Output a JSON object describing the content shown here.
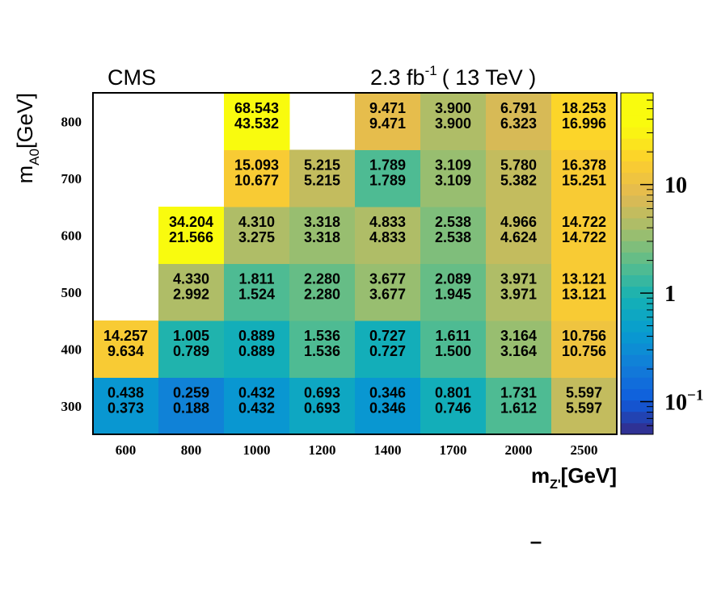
{
  "chart_data": {
    "type": "heatmap",
    "title": "",
    "experiment_label": "CMS",
    "lumi_label": "2.3 fb",
    "lumi_sup": "-1",
    "energy_label": "( 13 TeV )",
    "xlabel": "m",
    "xlabel_sub": "Z'",
    "xlabel_unit": "[GeV]",
    "ylabel": "m",
    "ylabel_sub": "A0",
    "ylabel_unit": "[GeV]",
    "x_categories": [
      "600",
      "800",
      "1000",
      "1200",
      "1400",
      "1700",
      "2000",
      "2500"
    ],
    "y_categories": [
      "300",
      "400",
      "500",
      "600",
      "700",
      "800"
    ],
    "z_scale": "log",
    "z_range": [
      0.05,
      70
    ],
    "colorbar_ticks": [
      {
        "value": 10,
        "base": "10",
        "exp": ""
      },
      {
        "value": 1,
        "base": "1",
        "exp": ""
      },
      {
        "value": 0.1,
        "base": "10",
        "exp": "−1"
      }
    ],
    "stray_mark": "–",
    "cells": [
      {
        "x": "600",
        "y": "300",
        "top": "0.438",
        "bottom": "0.373"
      },
      {
        "x": "800",
        "y": "300",
        "top": "0.259",
        "bottom": "0.188"
      },
      {
        "x": "1000",
        "y": "300",
        "top": "0.432",
        "bottom": "0.432"
      },
      {
        "x": "1200",
        "y": "300",
        "top": "0.693",
        "bottom": "0.693"
      },
      {
        "x": "1400",
        "y": "300",
        "top": "0.346",
        "bottom": "0.346"
      },
      {
        "x": "1700",
        "y": "300",
        "top": "0.801",
        "bottom": "0.746"
      },
      {
        "x": "2000",
        "y": "300",
        "top": "1.731",
        "bottom": "1.612"
      },
      {
        "x": "2500",
        "y": "300",
        "top": "5.597",
        "bottom": "5.597"
      },
      {
        "x": "600",
        "y": "400",
        "top": "14.257",
        "bottom": "9.634"
      },
      {
        "x": "800",
        "y": "400",
        "top": "1.005",
        "bottom": "0.789"
      },
      {
        "x": "1000",
        "y": "400",
        "top": "0.889",
        "bottom": "0.889"
      },
      {
        "x": "1200",
        "y": "400",
        "top": "1.536",
        "bottom": "1.536"
      },
      {
        "x": "1400",
        "y": "400",
        "top": "0.727",
        "bottom": "0.727"
      },
      {
        "x": "1700",
        "y": "400",
        "top": "1.611",
        "bottom": "1.500"
      },
      {
        "x": "2000",
        "y": "400",
        "top": "3.164",
        "bottom": "3.164"
      },
      {
        "x": "2500",
        "y": "400",
        "top": "10.756",
        "bottom": "10.756"
      },
      {
        "x": "800",
        "y": "500",
        "top": "4.330",
        "bottom": "2.992"
      },
      {
        "x": "1000",
        "y": "500",
        "top": "1.811",
        "bottom": "1.524"
      },
      {
        "x": "1200",
        "y": "500",
        "top": "2.280",
        "bottom": "2.280"
      },
      {
        "x": "1400",
        "y": "500",
        "top": "3.677",
        "bottom": "3.677"
      },
      {
        "x": "1700",
        "y": "500",
        "top": "2.089",
        "bottom": "1.945"
      },
      {
        "x": "2000",
        "y": "500",
        "top": "3.971",
        "bottom": "3.971"
      },
      {
        "x": "2500",
        "y": "500",
        "top": "13.121",
        "bottom": "13.121"
      },
      {
        "x": "800",
        "y": "600",
        "top": "34.204",
        "bottom": "21.566"
      },
      {
        "x": "1000",
        "y": "600",
        "top": "4.310",
        "bottom": "3.275"
      },
      {
        "x": "1200",
        "y": "600",
        "top": "3.318",
        "bottom": "3.318"
      },
      {
        "x": "1400",
        "y": "600",
        "top": "4.833",
        "bottom": "4.833"
      },
      {
        "x": "1700",
        "y": "600",
        "top": "2.538",
        "bottom": "2.538"
      },
      {
        "x": "2000",
        "y": "600",
        "top": "4.966",
        "bottom": "4.624"
      },
      {
        "x": "2500",
        "y": "600",
        "top": "14.722",
        "bottom": "14.722"
      },
      {
        "x": "1000",
        "y": "700",
        "top": "15.093",
        "bottom": "10.677"
      },
      {
        "x": "1200",
        "y": "700",
        "top": "5.215",
        "bottom": "5.215"
      },
      {
        "x": "1400",
        "y": "700",
        "top": "1.789",
        "bottom": "1.789"
      },
      {
        "x": "1700",
        "y": "700",
        "top": "3.109",
        "bottom": "3.109"
      },
      {
        "x": "2000",
        "y": "700",
        "top": "5.780",
        "bottom": "5.382"
      },
      {
        "x": "2500",
        "y": "700",
        "top": "16.378",
        "bottom": "15.251"
      },
      {
        "x": "1000",
        "y": "800",
        "top": "68.543",
        "bottom": "43.532"
      },
      {
        "x": "1400",
        "y": "800",
        "top": "9.471",
        "bottom": "9.471"
      },
      {
        "x": "1700",
        "y": "800",
        "top": "3.900",
        "bottom": "3.900"
      },
      {
        "x": "2000",
        "y": "800",
        "top": "6.791",
        "bottom": "6.323"
      },
      {
        "x": "2500",
        "y": "800",
        "top": "18.253",
        "bottom": "16.996"
      }
    ]
  }
}
